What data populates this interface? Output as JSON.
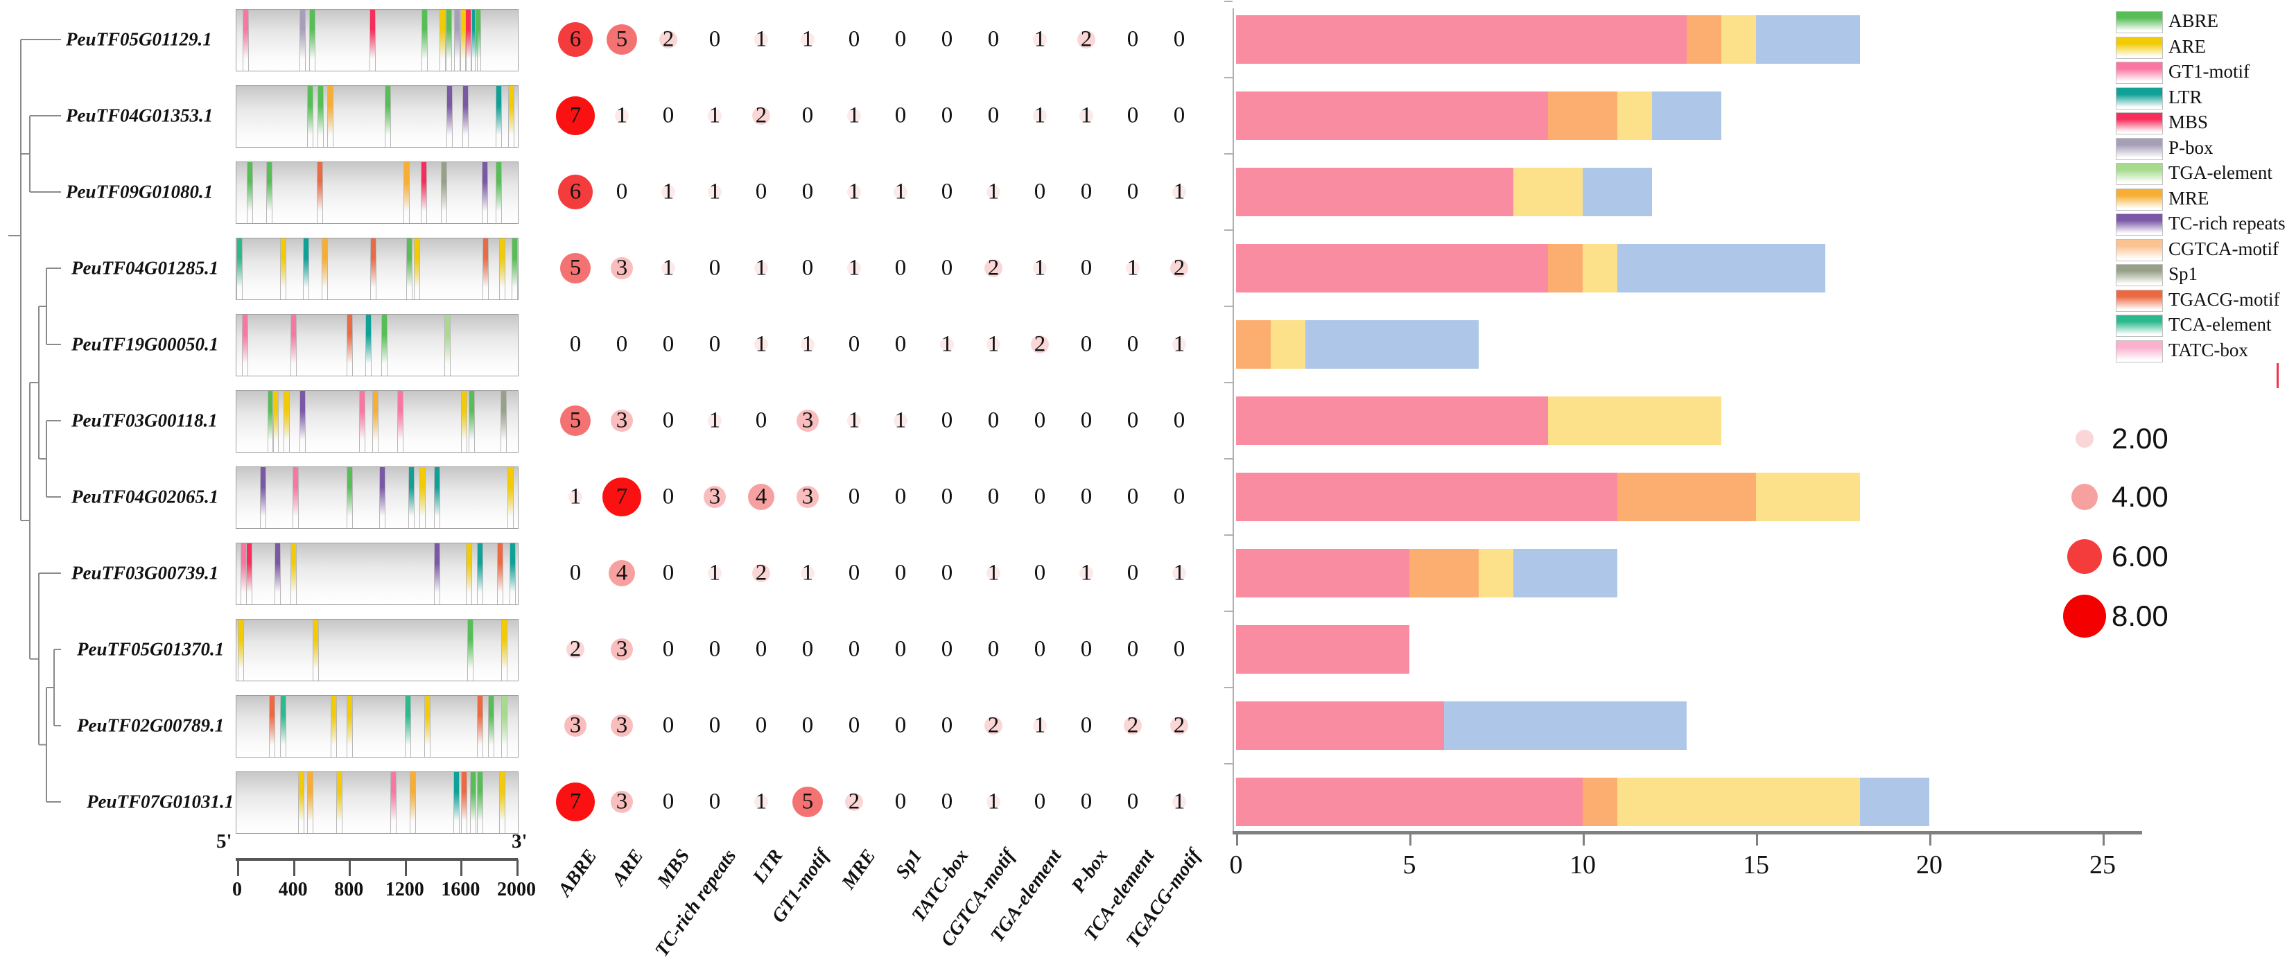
{
  "figure": {
    "strand_start": "5'",
    "strand_end": "3'",
    "scale_ticks": [
      "0",
      "400",
      "800",
      "1200",
      "1600",
      "2000"
    ],
    "bar_axis_ticks": [
      "0",
      "5",
      "10",
      "15",
      "20",
      "25"
    ],
    "bar_axis_max": 25,
    "matrix_columns": [
      "ABRE",
      "ARE",
      "MBS",
      "TC-rich repeats",
      "LTR",
      "GT1-motif",
      "MRE",
      "Sp1",
      "TATC-box",
      "CGTCA-motif",
      "TGA-element",
      "P-box",
      "TCA-element",
      "TGACG-motif"
    ],
    "motif_legend": [
      {
        "label": "ABRE",
        "color": "#57BE57"
      },
      {
        "label": "ARE",
        "color": "#F2CB05"
      },
      {
        "label": "GT1-motif",
        "color": "#FA76A2"
      },
      {
        "label": "LTR",
        "color": "#0FA096"
      },
      {
        "label": "MBS",
        "color": "#F72D5B"
      },
      {
        "label": "P-box",
        "color": "#A79FB8"
      },
      {
        "label": "TGA-element",
        "color": "#A6DB8D"
      },
      {
        "label": "MRE",
        "color": "#F7AE33"
      },
      {
        "label": "TC-rich repeats",
        "color": "#7A58A5"
      },
      {
        "label": "CGTCA-motif",
        "color": "#FAC391"
      },
      {
        "label": "Sp1",
        "color": "#98A188"
      },
      {
        "label": "TGACG-motif",
        "color": "#EC6A43"
      },
      {
        "label": "TCA-element",
        "color": "#2BBA8D"
      },
      {
        "label": "TATC-box",
        "color": "#FBB0CE"
      }
    ],
    "bubble_size_legend": [
      {
        "label": "2.00",
        "value": 2,
        "color": "#FBD6D6"
      },
      {
        "label": "4.00",
        "value": 4,
        "color": "#F7A0A0"
      },
      {
        "label": "6.00",
        "value": 6,
        "color": "#F43C3C"
      },
      {
        "label": "8.00",
        "value": 8,
        "color": "#F40000"
      }
    ],
    "bubble_value_colors": {
      "1": "#FCE9E9",
      "2": "#FBD6D6",
      "3": "#F9BDBD",
      "4": "#F7A0A0",
      "5": "#F57272",
      "6": "#F43C3C",
      "7": "#FB1111",
      "8": "#F40000"
    },
    "bar_series_colors": {
      "pink": "#F98CA0",
      "orange": "#FBAE6F",
      "yellow": "#FCE18A",
      "blue": "#AEC6E8"
    },
    "genes": [
      {
        "name": "PeuTF05G01129.1",
        "counts": [
          6,
          5,
          2,
          0,
          1,
          1,
          0,
          0,
          0,
          0,
          1,
          2,
          0,
          0
        ],
        "bar": [
          13,
          1,
          1,
          3
        ],
        "motifs": [
          [
            62,
            "GT1-motif"
          ],
          [
            467,
            "P-box"
          ],
          [
            535,
            "ABRE"
          ],
          [
            966,
            "MBS"
          ],
          [
            1334,
            "ABRE"
          ],
          [
            1464,
            "ARE"
          ],
          [
            1506,
            "ABRE"
          ],
          [
            1568,
            "P-box"
          ],
          [
            1610,
            "ARE"
          ],
          [
            1646,
            "MBS"
          ],
          [
            1688,
            "LTR"
          ],
          [
            1714,
            "ABRE"
          ]
        ]
      },
      {
        "name": "PeuTF04G01353.1",
        "counts": [
          7,
          1,
          0,
          1,
          2,
          0,
          1,
          0,
          0,
          0,
          1,
          1,
          0,
          0
        ],
        "bar": [
          9,
          2,
          1,
          2
        ],
        "motifs": [
          [
            520,
            "ABRE"
          ],
          [
            598,
            "ABRE"
          ],
          [
            665,
            "MRE"
          ],
          [
            1075,
            "ABRE"
          ],
          [
            1512,
            "TC-rich repeats"
          ],
          [
            1626,
            "TC-rich repeats"
          ],
          [
            1860,
            "LTR"
          ],
          [
            1950,
            "ARE"
          ]
        ]
      },
      {
        "name": "PeuTF09G01080.1",
        "counts": [
          6,
          0,
          1,
          1,
          0,
          0,
          1,
          1,
          0,
          1,
          0,
          0,
          0,
          1
        ],
        "bar": [
          8,
          0,
          2,
          2
        ],
        "motifs": [
          [
            95,
            "ABRE"
          ],
          [
            230,
            "ABRE"
          ],
          [
            590,
            "TGACG-motif"
          ],
          [
            1205,
            "MRE"
          ],
          [
            1330,
            "MBS"
          ],
          [
            1475,
            "Sp1"
          ],
          [
            1766,
            "TC-rich repeats"
          ],
          [
            1860,
            "ABRE"
          ]
        ]
      },
      {
        "name": "PeuTF04G01285.1",
        "counts": [
          5,
          3,
          1,
          0,
          1,
          0,
          1,
          0,
          0,
          2,
          1,
          0,
          1,
          2
        ],
        "bar": [
          9,
          1,
          1,
          6
        ],
        "motifs": [
          [
            20,
            "TCA-element"
          ],
          [
            330,
            "ARE"
          ],
          [
            495,
            "LTR"
          ],
          [
            625,
            "MRE"
          ],
          [
            970,
            "TGACG-motif"
          ],
          [
            1225,
            "ABRE"
          ],
          [
            1280,
            "ARE"
          ],
          [
            1770,
            "TGACG-motif"
          ],
          [
            1885,
            "ARE"
          ],
          [
            1975,
            "ABRE"
          ]
        ]
      },
      {
        "name": "PeuTF19G00050.1",
        "counts": [
          0,
          0,
          0,
          0,
          1,
          1,
          0,
          0,
          1,
          1,
          2,
          0,
          0,
          1
        ],
        "bar": [
          0,
          1,
          1,
          5
        ],
        "motifs": [
          [
            57,
            "GT1-motif"
          ],
          [
            405,
            "GT1-motif"
          ],
          [
            805,
            "TGACG-motif"
          ],
          [
            935,
            "LTR"
          ],
          [
            1050,
            "ABRE"
          ],
          [
            1496,
            "TGA-element"
          ]
        ]
      },
      {
        "name": "PeuTF03G00118.1",
        "counts": [
          5,
          3,
          0,
          1,
          0,
          3,
          1,
          1,
          0,
          0,
          0,
          0,
          0,
          0
        ],
        "bar": [
          9,
          0,
          5,
          0
        ],
        "motifs": [
          [
            240,
            "ABRE"
          ],
          [
            275,
            "ARE"
          ],
          [
            355,
            "ARE"
          ],
          [
            467,
            "TC-rich repeats"
          ],
          [
            893,
            "GT1-motif"
          ],
          [
            987,
            "MRE"
          ],
          [
            1164,
            "GT1-motif"
          ],
          [
            1616,
            "ARE"
          ],
          [
            1668,
            "ABRE"
          ],
          [
            1896,
            "Sp1"
          ]
        ]
      },
      {
        "name": "PeuTF04G02065.1",
        "counts": [
          1,
          7,
          0,
          3,
          4,
          3,
          0,
          0,
          0,
          0,
          0,
          0,
          0,
          0
        ],
        "bar": [
          11,
          4,
          3,
          0
        ],
        "motifs": [
          [
            187,
            "TC-rich repeats"
          ],
          [
            421,
            "GT1-motif"
          ],
          [
            805,
            "ABRE"
          ],
          [
            1034,
            "TC-rich repeats"
          ],
          [
            1242,
            "LTR"
          ],
          [
            1320,
            "ARE"
          ],
          [
            1423,
            "LTR"
          ],
          [
            1948,
            "ARE"
          ]
        ]
      },
      {
        "name": "PeuTF03G00739.1",
        "counts": [
          0,
          4,
          0,
          1,
          2,
          1,
          0,
          0,
          0,
          1,
          0,
          1,
          0,
          1
        ],
        "bar": [
          5,
          2,
          1,
          3
        ],
        "motifs": [
          [
            50,
            "GT1-motif"
          ],
          [
            90,
            "MBS"
          ],
          [
            290,
            "TC-rich repeats"
          ],
          [
            405,
            "ARE"
          ],
          [
            1423,
            "TC-rich repeats"
          ],
          [
            1650,
            "ARE"
          ],
          [
            1730,
            "LTR"
          ],
          [
            1870,
            "TGACG-motif"
          ],
          [
            1960,
            "LTR"
          ]
        ]
      },
      {
        "name": "PeuTF05G01370.1",
        "counts": [
          2,
          3,
          0,
          0,
          0,
          0,
          0,
          0,
          0,
          0,
          0,
          0,
          0,
          0
        ],
        "bar": [
          5,
          0,
          0,
          0
        ],
        "motifs": [
          [
            30,
            "ARE"
          ],
          [
            560,
            "ARE"
          ],
          [
            1660,
            "ABRE"
          ],
          [
            1900,
            "ARE"
          ]
        ]
      },
      {
        "name": "PeuTF02G00789.1",
        "counts": [
          3,
          3,
          0,
          0,
          0,
          0,
          0,
          0,
          0,
          2,
          1,
          0,
          2,
          2
        ],
        "bar": [
          6,
          0,
          0,
          7
        ],
        "motifs": [
          [
            250,
            "TGACG-motif"
          ],
          [
            330,
            "TCA-element"
          ],
          [
            690,
            "ARE"
          ],
          [
            805,
            "ARE"
          ],
          [
            1216,
            "TCA-element"
          ],
          [
            1356,
            "ARE"
          ],
          [
            1730,
            "TGACG-motif"
          ],
          [
            1810,
            "ABRE"
          ],
          [
            1900,
            "TGA-element"
          ]
        ]
      },
      {
        "name": "PeuTF07G01031.1",
        "counts": [
          7,
          3,
          0,
          0,
          1,
          5,
          2,
          0,
          0,
          1,
          0,
          0,
          0,
          1
        ],
        "bar": [
          10,
          1,
          7,
          2
        ],
        "motifs": [
          [
            457,
            "ARE"
          ],
          [
            520,
            "MRE"
          ],
          [
            727,
            "ARE"
          ],
          [
            1112,
            "GT1-motif"
          ],
          [
            1253,
            "MRE"
          ],
          [
            1564,
            "LTR"
          ],
          [
            1616,
            "TGACG-motif"
          ],
          [
            1678,
            "ABRE"
          ],
          [
            1730,
            "ABRE"
          ],
          [
            1886,
            "ARE"
          ]
        ]
      }
    ]
  },
  "chart_data": [
    {
      "type": "heatmap",
      "subtype": "bubble-matrix",
      "rows": [
        "PeuTF05G01129.1",
        "PeuTF04G01353.1",
        "PeuTF09G01080.1",
        "PeuTF04G01285.1",
        "PeuTF19G00050.1",
        "PeuTF03G00118.1",
        "PeuTF04G02065.1",
        "PeuTF03G00739.1",
        "PeuTF05G01370.1",
        "PeuTF02G00789.1",
        "PeuTF07G01031.1"
      ],
      "columns": [
        "ABRE",
        "ARE",
        "MBS",
        "TC-rich repeats",
        "LTR",
        "GT1-motif",
        "MRE",
        "Sp1",
        "TATC-box",
        "CGTCA-motif",
        "TGA-element",
        "P-box",
        "TCA-element",
        "TGACG-motif"
      ],
      "values": [
        [
          6,
          5,
          2,
          0,
          1,
          1,
          0,
          0,
          0,
          0,
          1,
          2,
          0,
          0
        ],
        [
          7,
          1,
          0,
          1,
          2,
          0,
          1,
          0,
          0,
          0,
          1,
          1,
          0,
          0
        ],
        [
          6,
          0,
          1,
          1,
          0,
          0,
          1,
          1,
          0,
          1,
          0,
          0,
          0,
          1
        ],
        [
          5,
          3,
          1,
          0,
          1,
          0,
          1,
          0,
          0,
          2,
          1,
          0,
          1,
          2
        ],
        [
          0,
          0,
          0,
          0,
          1,
          1,
          0,
          0,
          1,
          1,
          2,
          0,
          0,
          1
        ],
        [
          5,
          3,
          0,
          1,
          0,
          3,
          1,
          1,
          0,
          0,
          0,
          0,
          0,
          0
        ],
        [
          1,
          7,
          0,
          3,
          4,
          3,
          0,
          0,
          0,
          0,
          0,
          0,
          0,
          0
        ],
        [
          0,
          4,
          0,
          1,
          2,
          1,
          0,
          0,
          0,
          1,
          0,
          1,
          0,
          1
        ],
        [
          2,
          3,
          0,
          0,
          0,
          0,
          0,
          0,
          0,
          0,
          0,
          0,
          0,
          0
        ],
        [
          3,
          3,
          0,
          0,
          0,
          0,
          0,
          0,
          0,
          2,
          1,
          0,
          2,
          2
        ],
        [
          7,
          3,
          0,
          0,
          1,
          5,
          2,
          0,
          0,
          1,
          0,
          0,
          0,
          1
        ]
      ],
      "bubble_size_legend": [
        2.0,
        4.0,
        6.0,
        8.0
      ],
      "legend_position": "right"
    },
    {
      "type": "bar",
      "stacked": true,
      "orientation": "horizontal",
      "categories": [
        "PeuTF05G01129.1",
        "PeuTF04G01353.1",
        "PeuTF09G01080.1",
        "PeuTF04G01285.1",
        "PeuTF19G00050.1",
        "PeuTF03G00118.1",
        "PeuTF04G02065.1",
        "PeuTF03G00739.1",
        "PeuTF05G01370.1",
        "PeuTF02G00789.1",
        "PeuTF07G01031.1"
      ],
      "series": [
        {
          "name": "segment-pink",
          "color": "#F98CA0",
          "values": [
            13,
            9,
            8,
            9,
            0,
            9,
            11,
            5,
            5,
            6,
            10
          ]
        },
        {
          "name": "segment-orange",
          "color": "#FBAE6F",
          "values": [
            1,
            2,
            0,
            1,
            1,
            0,
            4,
            2,
            0,
            0,
            1
          ]
        },
        {
          "name": "segment-yellow",
          "color": "#FCE18A",
          "values": [
            1,
            1,
            2,
            1,
            1,
            5,
            3,
            1,
            0,
            0,
            7
          ]
        },
        {
          "name": "segment-blue",
          "color": "#AEC6E8",
          "values": [
            3,
            2,
            2,
            6,
            5,
            0,
            0,
            3,
            0,
            7,
            2
          ]
        }
      ],
      "xlim": [
        0,
        25
      ],
      "x_ticks": [
        0,
        5,
        10,
        15,
        20,
        25
      ],
      "grid": false
    },
    {
      "type": "table",
      "title": "promoter motif map scale (bp)",
      "x_ticks": [
        0,
        400,
        800,
        1200,
        1600,
        2000
      ]
    }
  ]
}
